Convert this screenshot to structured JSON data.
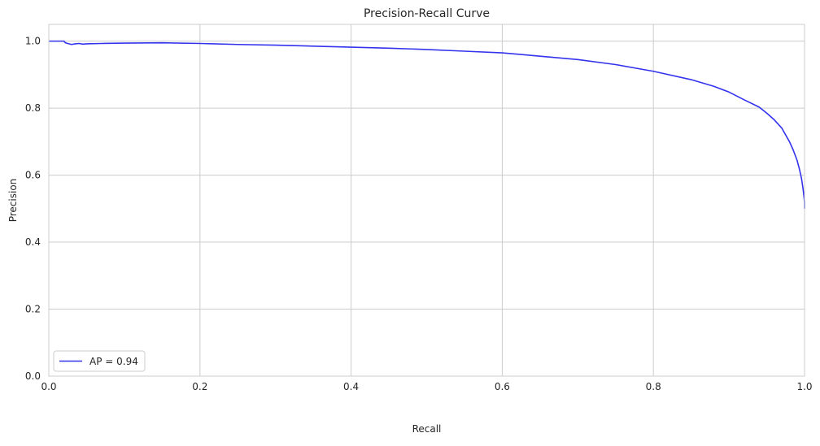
{
  "chart_data": {
    "type": "line",
    "title": "Precision-Recall Curve",
    "xlabel": "Recall",
    "ylabel": "Precision",
    "xlim": [
      0.0,
      1.0
    ],
    "ylim": [
      0.0,
      1.05
    ],
    "x_ticks": [
      "0.0",
      "0.2",
      "0.4",
      "0.6",
      "0.8",
      "1.0"
    ],
    "y_ticks": [
      "0.0",
      "0.2",
      "0.4",
      "0.6",
      "0.8",
      "1.0"
    ],
    "grid": true,
    "legend_position": "lower-left",
    "series": [
      {
        "name": "AP = 0.94",
        "color": "#3333ee",
        "x": [
          0.0,
          0.02,
          0.022,
          0.025,
          0.03,
          0.035,
          0.04,
          0.045,
          0.05,
          0.07,
          0.1,
          0.15,
          0.2,
          0.25,
          0.3,
          0.35,
          0.4,
          0.45,
          0.5,
          0.55,
          0.6,
          0.65,
          0.7,
          0.75,
          0.8,
          0.85,
          0.88,
          0.9,
          0.92,
          0.94,
          0.95,
          0.96,
          0.97,
          0.98,
          0.985,
          0.99,
          0.993,
          0.996,
          0.998,
          1.0,
          1.0
        ],
        "y": [
          1.0,
          1.0,
          0.995,
          0.993,
          0.99,
          0.992,
          0.993,
          0.991,
          0.992,
          0.993,
          0.994,
          0.995,
          0.993,
          0.99,
          0.988,
          0.985,
          0.982,
          0.979,
          0.975,
          0.97,
          0.965,
          0.955,
          0.945,
          0.93,
          0.91,
          0.885,
          0.865,
          0.848,
          0.825,
          0.803,
          0.785,
          0.765,
          0.74,
          0.7,
          0.675,
          0.645,
          0.62,
          0.59,
          0.56,
          0.52,
          0.5
        ]
      }
    ]
  }
}
